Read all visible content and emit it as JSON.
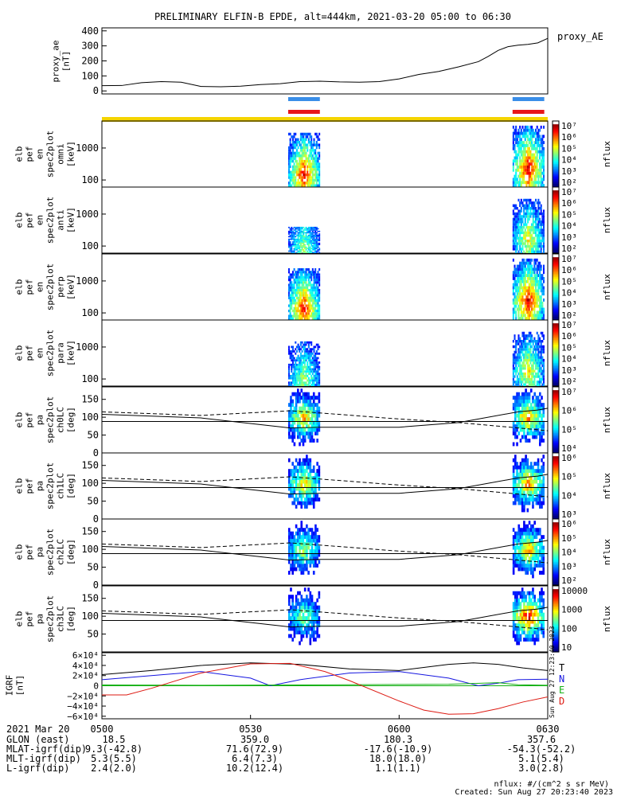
{
  "title": "PRELIMINARY ELFIN-B EPDE, alt=444km, 2021-03-20 05:00 to 06:30",
  "colors": {
    "science_bar": "#3a8ee8",
    "red_bar": "#e8161a",
    "yellow_bar": "#f5d400",
    "bx": "#000000",
    "by": "#1515e0",
    "bz": "#14b014",
    "bd": "#dd1a12"
  },
  "chart_data": {
    "type": "heatmap",
    "time_axis": {
      "labels": [
        "0500",
        "0530",
        "0600",
        "0630"
      ],
      "range_minutes": [
        0,
        90
      ]
    },
    "bars": [
      {
        "name": "science-collection",
        "color": "#3a8ee8",
        "intervals": [
          [
            37.6,
            44.0
          ],
          [
            82.9,
            89.3
          ]
        ]
      },
      {
        "name": "fgm-collection",
        "color": "#e8161a",
        "intervals": [
          [
            37.6,
            44.0
          ],
          [
            82.9,
            89.3
          ]
        ]
      },
      {
        "name": "position-coverage",
        "color": "#f5d400",
        "intervals": [
          [
            0,
            90
          ]
        ]
      }
    ],
    "proxy_ae": {
      "ylabel": "proxy_ae\n[nT]",
      "legend": "proxy_AE",
      "yticks": [
        "400",
        "300",
        "200",
        "100",
        "0"
      ],
      "ylim": [
        -20,
        420
      ],
      "t": [
        0,
        4,
        8,
        12,
        16,
        20,
        24,
        28,
        32,
        36,
        40,
        44,
        48,
        52,
        56,
        60,
        64,
        68,
        72,
        76,
        78,
        80,
        82,
        84,
        86,
        88,
        90
      ],
      "values": [
        35,
        36,
        55,
        62,
        58,
        30,
        28,
        32,
        42,
        48,
        62,
        65,
        60,
        58,
        62,
        80,
        110,
        130,
        160,
        195,
        230,
        270,
        295,
        305,
        310,
        320,
        350
      ]
    },
    "spectrograms": [
      {
        "ylabel": [
          "elb",
          "pef",
          "en",
          "spec2plot",
          "omni",
          "[keV]"
        ],
        "yticks": [
          "1000",
          "100"
        ],
        "ylim": [
          60,
          7000
        ],
        "zlabel": "nflux",
        "zticks": [
          "10⁷",
          "10⁶",
          "10⁵",
          "10⁴",
          "10³",
          "10²"
        ],
        "zlim": [
          100,
          10000000
        ],
        "blobs": [
          {
            "t": [
              37.6,
              44.0
            ],
            "peak_keV": 130,
            "max_keV": 3000,
            "intensity": 4.8
          },
          {
            "t": [
              82.9,
              89.3
            ],
            "peak_keV": 200,
            "max_keV": 5000,
            "intensity": 5.0
          }
        ]
      },
      {
        "ylabel": [
          "elb",
          "pef",
          "en",
          "spec2plot",
          "anti",
          "[keV]"
        ],
        "yticks": [
          "1000",
          "100"
        ],
        "ylim": [
          60,
          7000
        ],
        "zlabel": "nflux",
        "zticks": [
          "10⁷",
          "10⁶",
          "10⁵",
          "10⁴",
          "10³",
          "10²"
        ],
        "zlim": [
          100,
          10000000
        ],
        "blobs": [
          {
            "t": [
              37.6,
              44.0
            ],
            "peak_keV": 90,
            "max_keV": 400,
            "intensity": 2.8
          },
          {
            "t": [
              82.9,
              89.3
            ],
            "peak_keV": 150,
            "max_keV": 3000,
            "intensity": 3.5
          }
        ]
      },
      {
        "ylabel": [
          "elb",
          "pef",
          "en",
          "spec2plot",
          "perp",
          "[keV]"
        ],
        "yticks": [
          "1000",
          "100"
        ],
        "ylim": [
          60,
          7000
        ],
        "zlabel": "nflux",
        "zticks": [
          "10⁷",
          "10⁶",
          "10⁵",
          "10⁴",
          "10³",
          "10²"
        ],
        "zlim": [
          100,
          10000000
        ],
        "blobs": [
          {
            "t": [
              37.6,
              44.0
            ],
            "peak_keV": 120,
            "max_keV": 2500,
            "intensity": 4.8
          },
          {
            "t": [
              82.9,
              89.3
            ],
            "peak_keV": 200,
            "max_keV": 5000,
            "intensity": 5.0
          }
        ]
      },
      {
        "ylabel": [
          "elb",
          "pef",
          "en",
          "spec2plot",
          "para",
          "[keV]"
        ],
        "yticks": [
          "1000",
          "100"
        ],
        "ylim": [
          60,
          7000
        ],
        "zlabel": "nflux",
        "zticks": [
          "10⁷",
          "10⁶",
          "10⁵",
          "10⁴",
          "10³",
          "10²"
        ],
        "zlim": [
          100,
          10000000
        ],
        "blobs": [
          {
            "t": [
              37.6,
              44.0
            ],
            "peak_keV": 90,
            "max_keV": 1500,
            "intensity": 3.0
          },
          {
            "t": [
              82.9,
              89.3
            ],
            "peak_keV": 150,
            "max_keV": 3000,
            "intensity": 3.6
          }
        ]
      }
    ],
    "pitch_angle": [
      {
        "ylabel": [
          "elb",
          "pef",
          "pa",
          "spec2plot",
          "ch0LC",
          "[deg]"
        ],
        "yticks": [
          "150",
          "100",
          "50",
          "0"
        ],
        "ylim": [
          0,
          185
        ],
        "zlabel": "nflux",
        "zticks": [
          "10⁷",
          "10⁶",
          "10⁵",
          "10⁴"
        ],
        "zlim": [
          3000,
          10000000
        ],
        "blobs": [
          {
            "t": [
              37.6,
              44.0
            ],
            "intensity": 0.75
          },
          {
            "t": [
              82.9,
              89.3
            ],
            "intensity": 0.8
          }
        ]
      },
      {
        "ylabel": [
          "elb",
          "pef",
          "pa",
          "spec2plot",
          "ch1LC",
          "[deg]"
        ],
        "yticks": [
          "150",
          "100",
          "50",
          "0"
        ],
        "ylim": [
          0,
          185
        ],
        "zlabel": "nflux",
        "zticks": [
          "10⁶",
          "10⁵",
          "10⁴",
          "10³"
        ],
        "zlim": [
          500,
          2000000
        ],
        "blobs": [
          {
            "t": [
              37.6,
              44.0
            ],
            "intensity": 0.7
          },
          {
            "t": [
              82.9,
              89.3
            ],
            "intensity": 0.8
          }
        ]
      },
      {
        "ylabel": [
          "elb",
          "pef",
          "pa",
          "spec2plot",
          "ch2LC",
          "[deg]"
        ],
        "yticks": [
          "150",
          "100",
          "50",
          "0"
        ],
        "ylim": [
          0,
          185
        ],
        "zlabel": "nflux",
        "zticks": [
          "10⁶",
          "10⁵",
          "10⁴",
          "10³",
          "10²"
        ],
        "zlim": [
          100,
          1000000
        ],
        "blobs": [
          {
            "t": [
              37.6,
              44.0
            ],
            "intensity": 0.6
          },
          {
            "t": [
              82.9,
              89.3
            ],
            "intensity": 0.75
          }
        ]
      },
      {
        "ylabel": [
          "elb",
          "pef",
          "pa",
          "spec2plot",
          "ch3LC",
          "[deg]"
        ],
        "yticks": [
          "150",
          "100",
          "50"
        ],
        "ylim": [
          0,
          185
        ],
        "zlabel": "nflux",
        "zticks": [
          "10000",
          "1000",
          "100",
          "10"
        ],
        "zlim": [
          10,
          20000
        ],
        "blobs": [
          {
            "t": [
              37.6,
              44.0
            ],
            "intensity": 0.55
          },
          {
            "t": [
              82.9,
              89.3
            ],
            "intensity": 0.95
          }
        ]
      }
    ],
    "loss_cone": {
      "t": [
        0,
        20,
        38,
        44,
        60,
        72,
        84,
        88,
        90
      ],
      "solid": [
        108,
        98,
        70,
        72,
        72,
        85,
        115,
        120,
        125
      ],
      "lower": [
        88,
        88,
        88,
        88,
        88,
        88,
        88,
        88,
        88
      ],
      "dashed": [
        115,
        105,
        118,
        112,
        95,
        85,
        70,
        65,
        62
      ]
    },
    "igrf": {
      "ylabel": "IGRF\n[nT]",
      "yticks": [
        "6×10⁴",
        "4×10⁴",
        "2×10⁴",
        "0",
        "−2×10⁴",
        "−4×10⁴",
        "−6×10⁴"
      ],
      "ylim": [
        -65000,
        65000
      ],
      "series": [
        {
          "name": "T",
          "color": "#000000",
          "t": [
            0,
            10,
            20,
            30,
            40,
            50,
            60,
            70,
            75,
            80,
            85,
            90
          ],
          "values": [
            22000,
            30000,
            40000,
            45000,
            42000,
            33000,
            30000,
            42000,
            45000,
            42000,
            35000,
            30000
          ]
        },
        {
          "name": "N",
          "color": "#1515e0",
          "t": [
            0,
            10,
            20,
            30,
            34,
            40,
            50,
            60,
            70,
            76,
            80,
            84,
            90
          ],
          "values": [
            12000,
            20000,
            28000,
            15000,
            0,
            12000,
            25000,
            28000,
            15000,
            0,
            5000,
            12000,
            13000
          ]
        },
        {
          "name": "E",
          "color": "#14b014",
          "t": [
            0,
            20,
            40,
            60,
            70,
            80,
            84,
            90
          ],
          "values": [
            1500,
            1000,
            1500,
            2500,
            3000,
            6000,
            2000,
            1000
          ]
        },
        {
          "name": "D",
          "color": "#dd1a12",
          "t": [
            0,
            5,
            10,
            20,
            30,
            38,
            45,
            50,
            60,
            65,
            70,
            75,
            80,
            85,
            90
          ],
          "values": [
            -18000,
            -18000,
            -5000,
            25000,
            43000,
            44000,
            28000,
            10000,
            -30000,
            -48000,
            -56000,
            -55000,
            -45000,
            -32000,
            -22000
          ]
        }
      ]
    },
    "ephemeris": {
      "date": "2021 Mar 20",
      "rows": [
        {
          "label": "GLON (east)",
          "values": [
            "18.5",
            "359.0",
            "180.3",
            "357.6"
          ]
        },
        {
          "label": "MLAT-igrf(dip)",
          "values": [
            "9.3(-42.8)",
            "71.6(72.9)",
            "-17.6(-10.9)",
            "-54.3(-52.2)"
          ]
        },
        {
          "label": "MLT-igrf(dip)",
          "values": [
            "5.3(5.5)",
            "6.4(7.3)",
            "18.0(18.0)",
            "5.1(5.4)"
          ]
        },
        {
          "label": "L-igrf(dip)",
          "values": [
            "2.4(2.0)",
            "10.2(12.4)",
            "1.1(1.1)",
            "3.0(2.8)"
          ]
        }
      ]
    },
    "created_stamp": "Sun Aug 27 12:23:40 2023",
    "footer_units": "nflux: #/(cm^2 s sr MeV)",
    "footer_created": "Created: Sun Aug 27 20:23:40 2023"
  }
}
